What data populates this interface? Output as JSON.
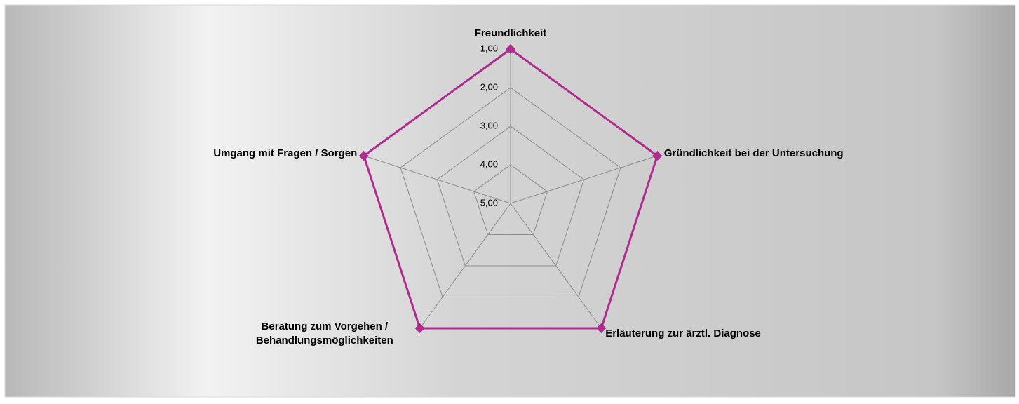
{
  "chart_data": {
    "type": "radar",
    "categories": [
      "Freundlichkeit",
      "Gründlichkeit bei der Untersuchung",
      "Erläuterung zur ärztl. Diagnose",
      "Beratung zum Vorgehen /\nBehandlungsmöglichkeiten",
      "Umgang mit Fragen / Sorgen"
    ],
    "values": [
      1,
      1,
      1,
      1,
      1
    ],
    "color": "#b02a8f",
    "ylim": [
      1,
      5
    ],
    "reverse_axis": true,
    "yticks": [
      {
        "value": 1,
        "label": "1,00"
      },
      {
        "value": 2,
        "label": "2,00"
      },
      {
        "value": 3,
        "label": "3,00"
      },
      {
        "value": 4,
        "label": "4,00"
      },
      {
        "value": 5,
        "label": "5,00"
      }
    ],
    "grid": true
  }
}
